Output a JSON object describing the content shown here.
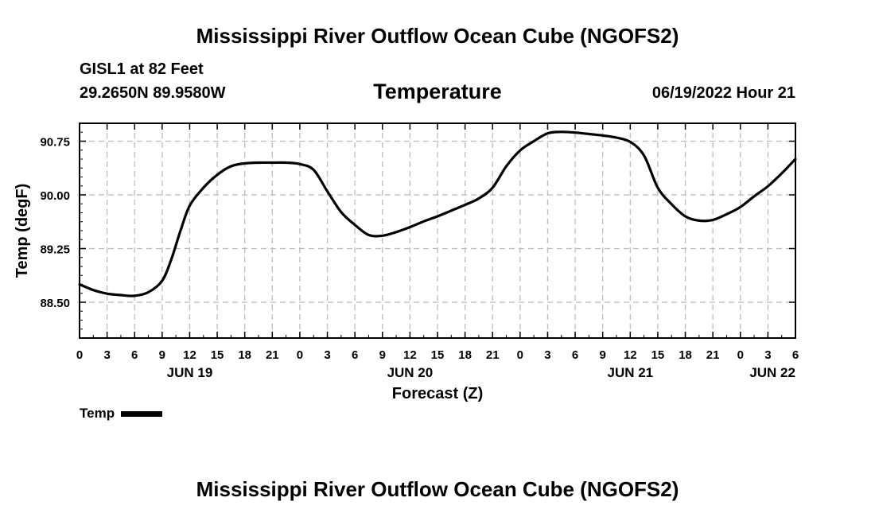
{
  "header": {
    "title": "Mississippi River Outflow Ocean Cube (NGOFS2)",
    "station": "GISL1 at 82 Feet",
    "coords": "29.2650N  89.9580W",
    "subtitle": "Temperature",
    "datetime": "06/19/2022 Hour 21"
  },
  "footer": {
    "title": "Mississippi River Outflow Ocean Cube (NGOFS2)"
  },
  "legend": {
    "label": "Temp",
    "color": "#000000"
  },
  "chart_data": {
    "type": "line",
    "title": "Temperature",
    "xlabel": "Forecast (Z)",
    "ylabel": "Temp (degF)",
    "xlim": [
      0,
      78
    ],
    "ylim": [
      88.0,
      91.0
    ],
    "grid": true,
    "y_ticks": [
      88.5,
      89.25,
      90.0,
      90.75
    ],
    "y_tick_labels": [
      "88.50",
      "89.25",
      "90.00",
      "90.75"
    ],
    "x_ticks": [
      0,
      3,
      6,
      9,
      12,
      15,
      18,
      21,
      24,
      27,
      30,
      33,
      36,
      39,
      42,
      45,
      48,
      51,
      54,
      57,
      60,
      63,
      66,
      69,
      72,
      75,
      78
    ],
    "x_tick_labels": [
      "0",
      "3",
      "6",
      "9",
      "12",
      "15",
      "18",
      "21",
      "0",
      "3",
      "6",
      "9",
      "12",
      "15",
      "18",
      "21",
      "0",
      "3",
      "6",
      "9",
      "12",
      "15",
      "18",
      "21",
      "0",
      "3",
      "6"
    ],
    "day_labels": [
      {
        "x": 12,
        "label": "JUN 19"
      },
      {
        "x": 36,
        "label": "JUN 20"
      },
      {
        "x": 60,
        "label": "JUN 21"
      },
      {
        "x": 75.5,
        "label": "JUN 22"
      }
    ],
    "series": [
      {
        "name": "Temp",
        "color": "#000000",
        "x": [
          0,
          1.5,
          3,
          4.5,
          6,
          7.5,
          9,
          10,
          11,
          12,
          13.5,
          15,
          16.5,
          18,
          19.5,
          21,
          22.5,
          24,
          25.5,
          27,
          28.5,
          30,
          31.5,
          33,
          34.5,
          36,
          37.5,
          39,
          40.5,
          42,
          43.5,
          45,
          46.5,
          48,
          49.5,
          51,
          52.5,
          54,
          55.5,
          57,
          58.5,
          60,
          61.5,
          63,
          64.5,
          66,
          67.5,
          69,
          70.5,
          72,
          73.5,
          75,
          76.5,
          78
        ],
        "y": [
          88.75,
          88.67,
          88.62,
          88.6,
          88.59,
          88.64,
          88.8,
          89.1,
          89.5,
          89.85,
          90.1,
          90.28,
          90.4,
          90.44,
          90.45,
          90.45,
          90.45,
          90.43,
          90.35,
          90.05,
          89.76,
          89.58,
          89.44,
          89.43,
          89.48,
          89.55,
          89.63,
          89.7,
          89.78,
          89.86,
          89.95,
          90.1,
          90.4,
          90.62,
          90.75,
          90.86,
          90.88,
          90.87,
          90.85,
          90.83,
          90.8,
          90.74,
          90.55,
          90.1,
          89.87,
          89.7,
          89.64,
          89.65,
          89.73,
          89.83,
          89.98,
          90.12,
          90.3,
          90.5
        ]
      }
    ]
  }
}
